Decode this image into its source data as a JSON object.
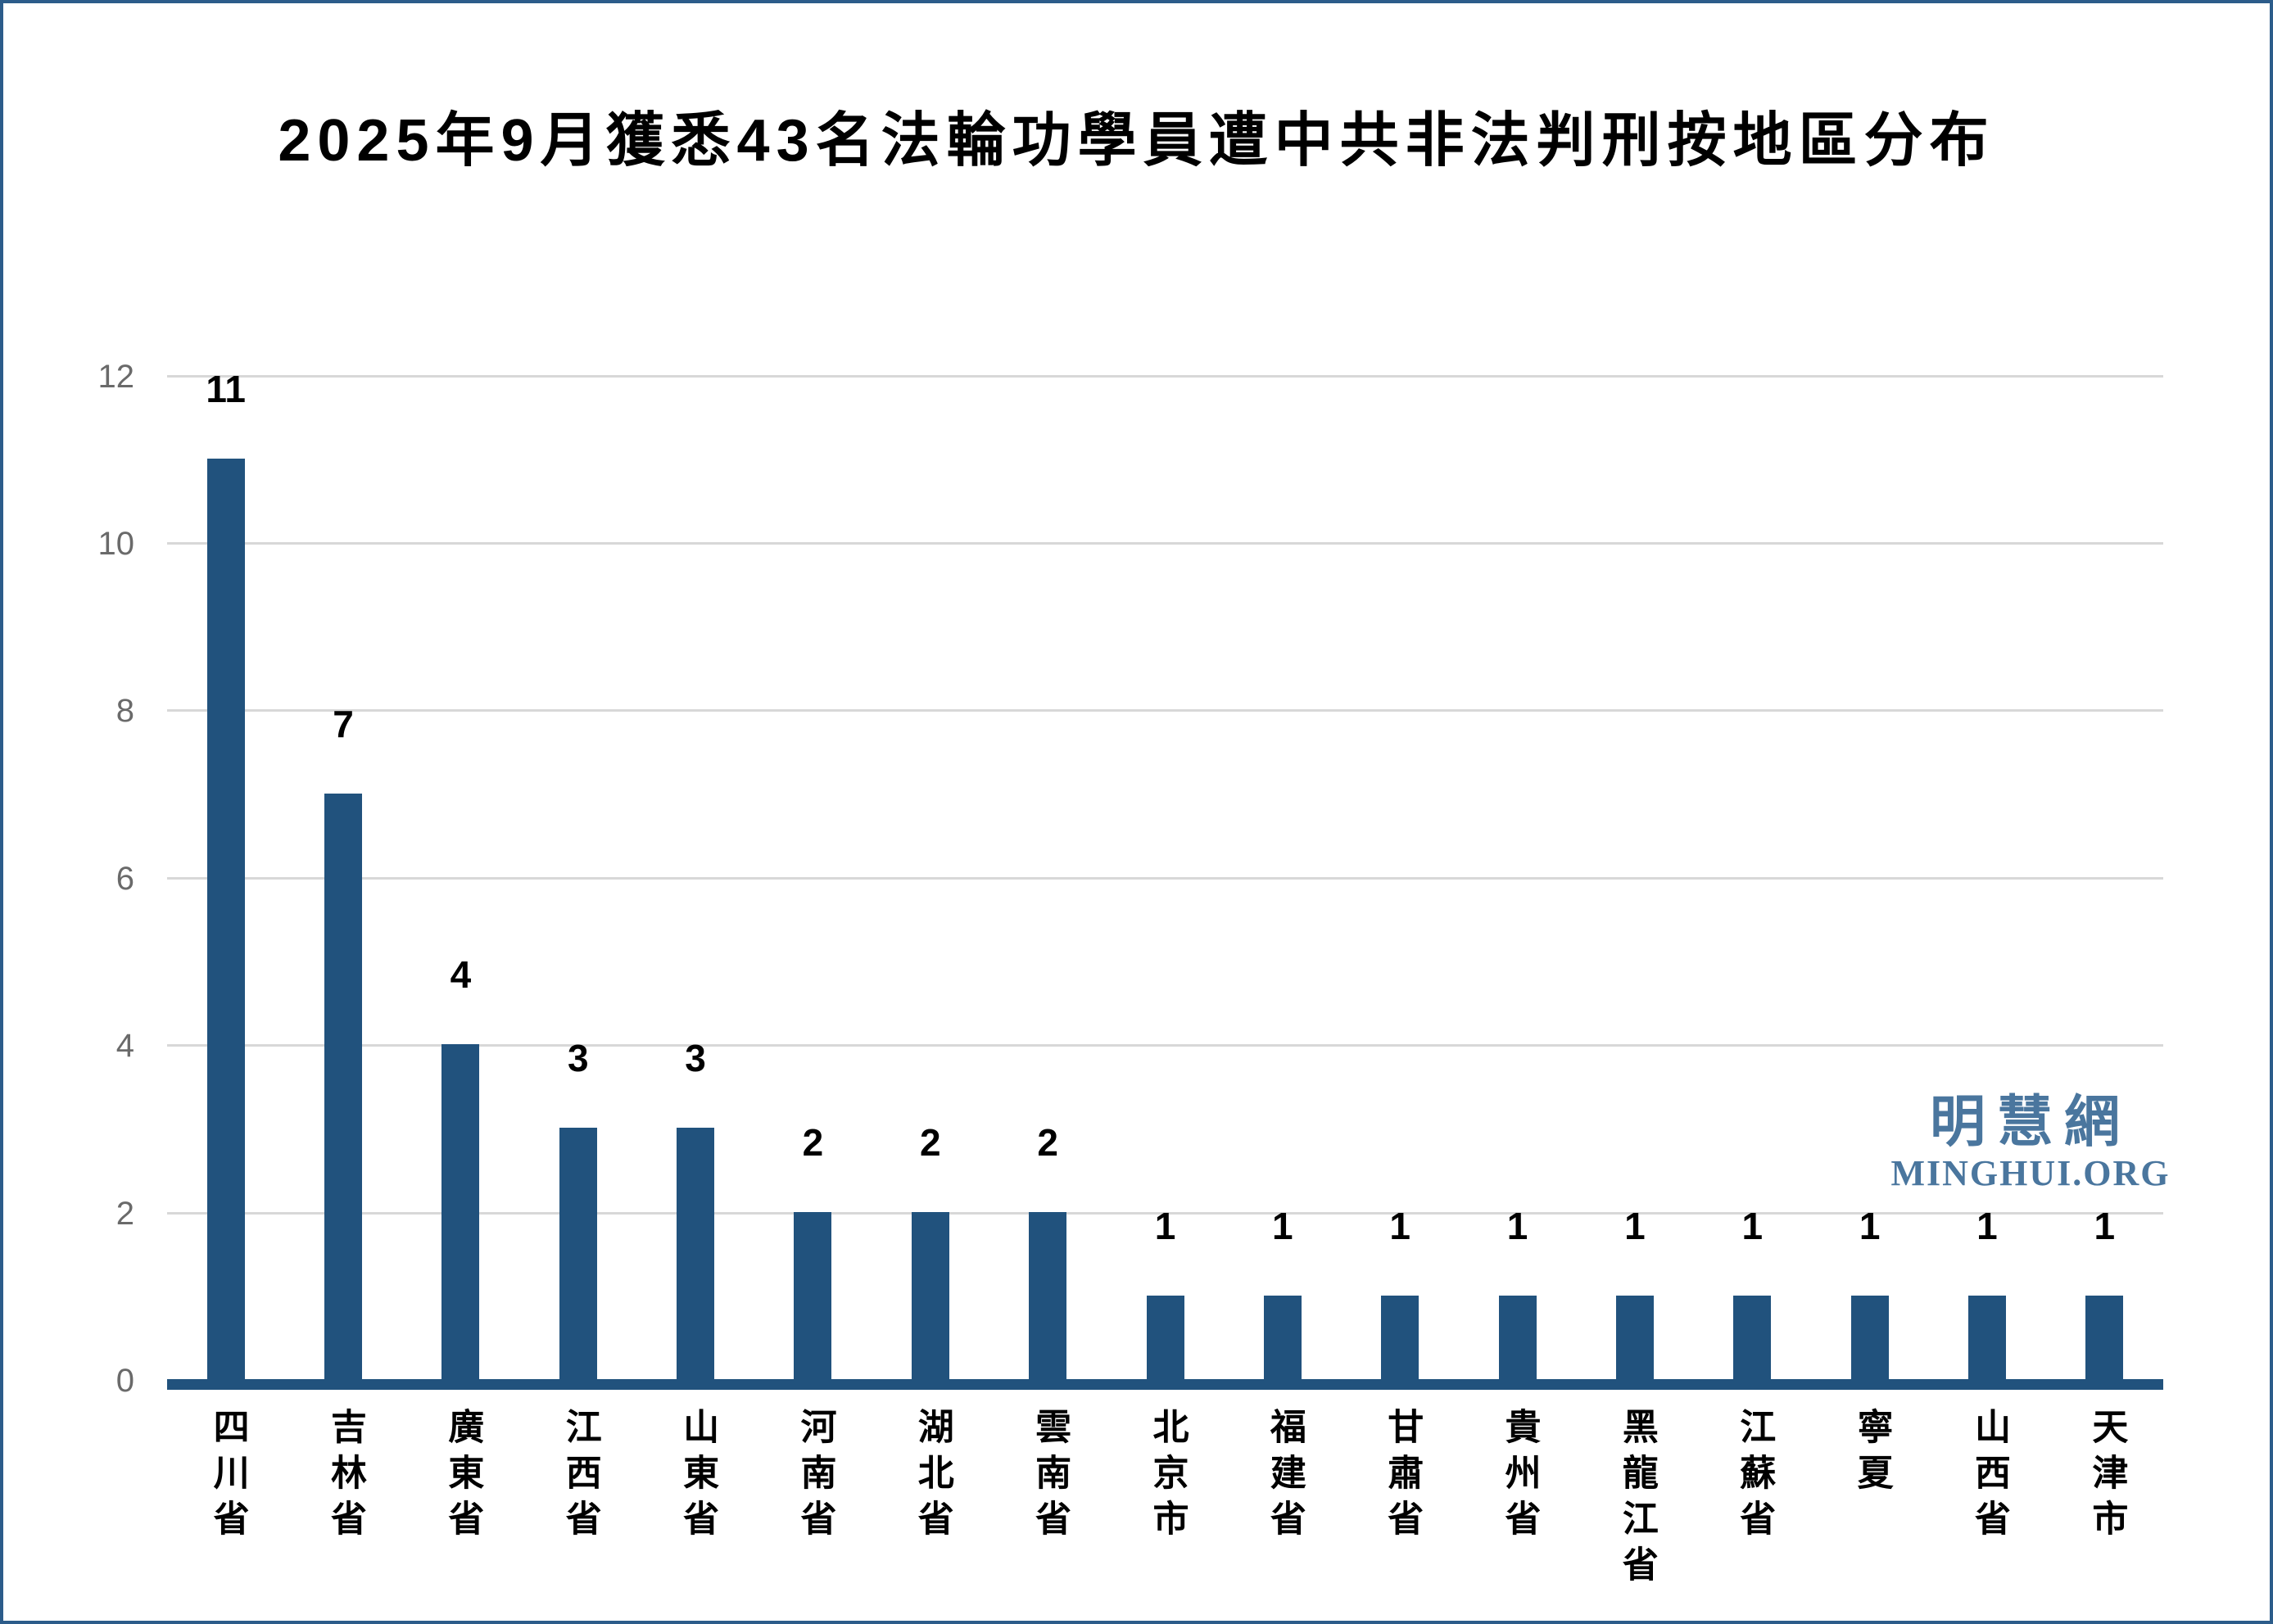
{
  "frame": {
    "border_color": "#2c5c8a",
    "background_color": "#ffffff"
  },
  "watermark": {
    "cjk": "明慧網",
    "latin": "MINGHUI.ORG",
    "color": "#4a769e"
  },
  "chart_data": {
    "type": "bar",
    "title": "2025年9月獲悉43名法輪功學員遭中共非法判刑按地區分布",
    "categories": [
      "四川省",
      "吉林省",
      "廣東省",
      "江西省",
      "山東省",
      "河南省",
      "湖北省",
      "雲南省",
      "北京市",
      "福建省",
      "甘肅省",
      "貴州省",
      "黑龍江省",
      "江蘇省",
      "寧夏",
      "山西省",
      "天津市"
    ],
    "values": [
      11,
      7,
      4,
      3,
      3,
      2,
      2,
      2,
      1,
      1,
      1,
      1,
      1,
      1,
      1,
      1,
      1
    ],
    "total": 43,
    "ylim": [
      0,
      12
    ],
    "yticks": [
      0,
      2,
      4,
      6,
      8,
      10,
      12
    ],
    "grid": true,
    "legend": false,
    "bar_color": "#21527d",
    "axis_line_color": "#21527d",
    "gridline_color": "#d8d8d8",
    "tick_label_color": "#6a6a6a",
    "value_label_color": "#000000",
    "category_label_color": "#000000"
  }
}
